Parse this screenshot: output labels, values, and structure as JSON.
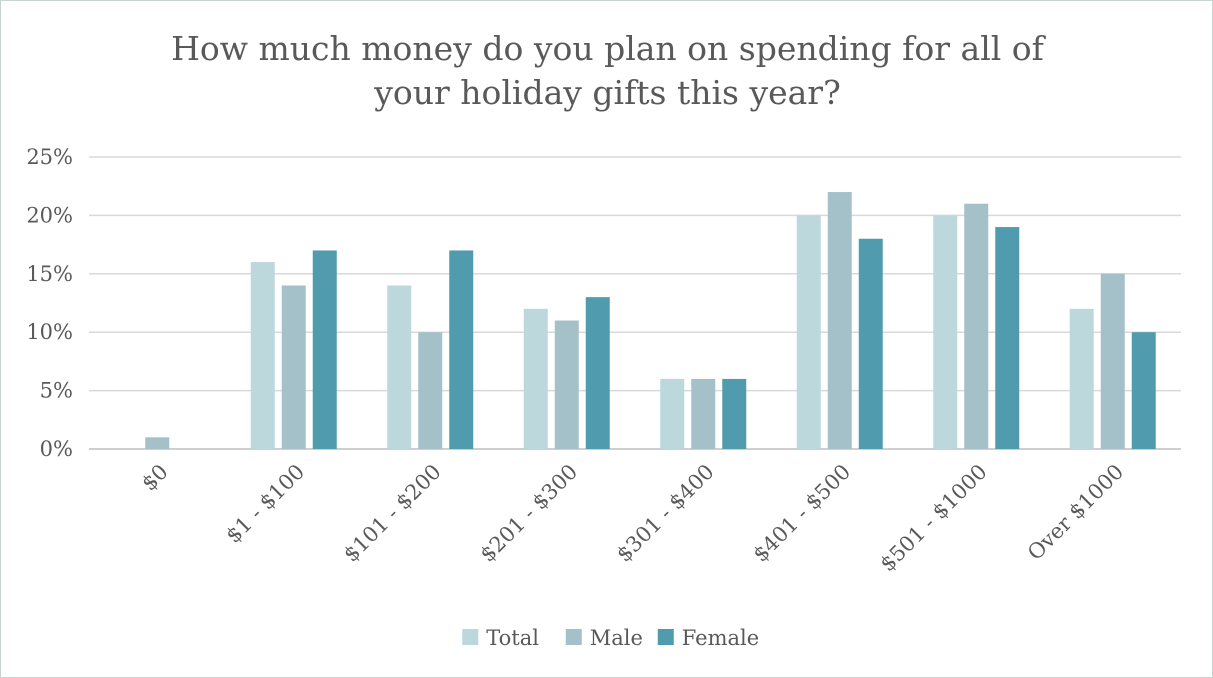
{
  "chart_data": {
    "type": "bar",
    "title": "How much money do you plan on spending for all of your holiday gifts this year?",
    "categories": [
      "$0",
      "$1 - $100",
      "$101 - $200",
      "$201 - $300",
      "$301 - $400",
      "$401 - $500",
      "$501 - $1000",
      "Over $1000"
    ],
    "series": [
      {
        "name": "Total",
        "color": "#bcd8dd",
        "values": [
          0,
          16,
          14,
          12,
          6,
          20,
          20,
          12
        ]
      },
      {
        "name": "Male",
        "color": "#a4c1c9",
        "values": [
          1,
          14,
          10,
          11,
          6,
          22,
          21,
          15
        ]
      },
      {
        "name": "Female",
        "color": "#519bae",
        "values": [
          0,
          17,
          17,
          13,
          6,
          18,
          19,
          10
        ]
      }
    ],
    "yticks": [
      "0%",
      "5%",
      "10%",
      "15%",
      "20%",
      "25%"
    ],
    "ylim": [
      0,
      25
    ],
    "xlabel": "",
    "ylabel": "",
    "grid": true,
    "legend": "bottom"
  }
}
